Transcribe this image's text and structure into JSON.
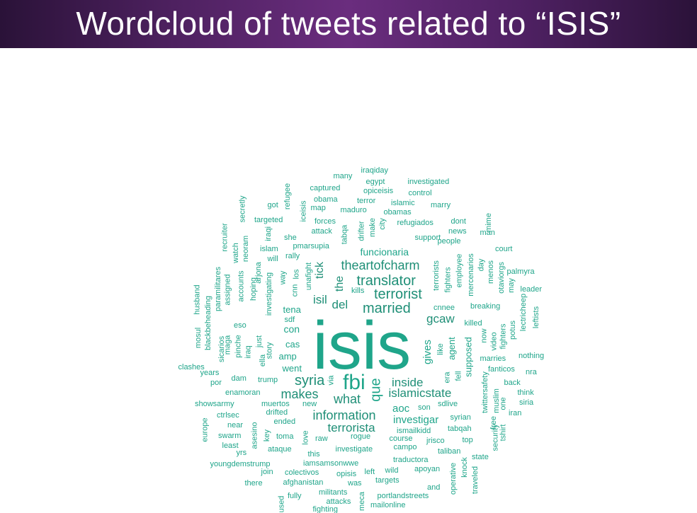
{
  "title": "Wordcloud of tweets related to “ISIS”",
  "colors": {
    "title_background": "#4e2160",
    "title_text": "#ffffff",
    "word_default": "#1fa58a",
    "word_large": "#1f8f77",
    "word_isis": "#555555",
    "word_fbi": "#7b62c4",
    "word_que": "#e5692d"
  },
  "words": [
    {
      "text": "isis",
      "color": "isis",
      "size": 5
    },
    {
      "text": "fbi",
      "color": "fbi",
      "size": 4
    },
    {
      "text": "que",
      "color": "que",
      "size": 3
    },
    {
      "text": "married",
      "size": 3
    },
    {
      "text": "translator",
      "size": 3
    },
    {
      "text": "terrorist",
      "size": 3
    },
    {
      "text": "theartofcharm",
      "size": 3
    },
    {
      "text": "syria",
      "size": 3
    },
    {
      "text": "makes",
      "size": 3
    },
    {
      "text": "what",
      "size": 3
    },
    {
      "text": "information",
      "size": 3
    },
    {
      "text": "terrorista",
      "size": 3
    },
    {
      "text": "islamicstate",
      "size": 3
    },
    {
      "text": "inside",
      "size": 3
    },
    {
      "text": "gcaw",
      "size": 3
    },
    {
      "text": "del",
      "size": 3
    },
    {
      "text": "isil",
      "size": 3
    },
    {
      "text": "the",
      "size": 3
    },
    {
      "text": "tick",
      "size": 3
    },
    {
      "text": "gives",
      "size": 2
    },
    {
      "text": "aoc",
      "size": 2
    },
    {
      "text": "investigar",
      "size": 2
    },
    {
      "text": "funcionaria",
      "size": 2
    },
    {
      "text": "con",
      "size": 2
    },
    {
      "text": "cas",
      "size": 2
    },
    {
      "text": "amp",
      "size": 2
    },
    {
      "text": "went",
      "size": 2
    },
    {
      "text": "tena",
      "size": 2
    },
    {
      "text": "supposed",
      "size": 2
    },
    {
      "text": "agent",
      "size": 2
    },
    {
      "text": "iraqiday",
      "size": 1
    },
    {
      "text": "many",
      "size": 1
    },
    {
      "text": "egypt",
      "size": 1
    },
    {
      "text": "investigated",
      "size": 1
    },
    {
      "text": "captured",
      "size": 1
    },
    {
      "text": "opiceisis",
      "size": 1
    },
    {
      "text": "control",
      "size": 1
    },
    {
      "text": "obama",
      "size": 1
    },
    {
      "text": "terror",
      "size": 1
    },
    {
      "text": "islamic",
      "size": 1
    },
    {
      "text": "marry",
      "size": 1
    },
    {
      "text": "got",
      "size": 1
    },
    {
      "text": "refugee",
      "size": 1
    },
    {
      "text": "map",
      "size": 1
    },
    {
      "text": "maduro",
      "size": 1
    },
    {
      "text": "obamas",
      "size": 1
    },
    {
      "text": "secretly",
      "size": 1
    },
    {
      "text": "targeted",
      "size": 1
    },
    {
      "text": "iceisis",
      "size": 1
    },
    {
      "text": "forces",
      "size": 1
    },
    {
      "text": "refugiados",
      "size": 1
    },
    {
      "text": "dont",
      "size": 1
    },
    {
      "text": "recruiter",
      "size": 1
    },
    {
      "text": "attack",
      "size": 1
    },
    {
      "text": "tabqa",
      "size": 1
    },
    {
      "text": "drifter",
      "size": 1
    },
    {
      "text": "make",
      "size": 1
    },
    {
      "text": "city",
      "size": 1
    },
    {
      "text": "news",
      "size": 1
    },
    {
      "text": "mime",
      "size": 1
    },
    {
      "text": "man",
      "size": 1
    },
    {
      "text": "she",
      "size": 1
    },
    {
      "text": "iraqi",
      "size": 1
    },
    {
      "text": "support",
      "size": 1
    },
    {
      "text": "people",
      "size": 1
    },
    {
      "text": "watch",
      "size": 1
    },
    {
      "text": "neoram",
      "size": 1
    },
    {
      "text": "islam",
      "size": 1
    },
    {
      "text": "pmarsupia",
      "size": 1
    },
    {
      "text": "court",
      "size": 1
    },
    {
      "text": "will",
      "size": 1
    },
    {
      "text": "rally",
      "size": 1
    },
    {
      "text": "employee",
      "size": 1
    },
    {
      "text": "mercenarios",
      "size": 1
    },
    {
      "text": "day",
      "size": 1
    },
    {
      "text": "menos",
      "size": 1
    },
    {
      "text": "palmyra",
      "size": 1
    },
    {
      "text": "arjona",
      "size": 1
    },
    {
      "text": "unafight",
      "size": 1
    },
    {
      "text": "los",
      "size": 1
    },
    {
      "text": "terrorists",
      "size": 1
    },
    {
      "text": "fighters",
      "size": 1
    },
    {
      "text": "otaviorgs",
      "size": 1
    },
    {
      "text": "may",
      "size": 1
    },
    {
      "text": "leader",
      "size": 1
    },
    {
      "text": "paramilitares",
      "size": 1
    },
    {
      "text": "assigned",
      "size": 1
    },
    {
      "text": "accounts",
      "size": 1
    },
    {
      "text": "hoping",
      "size": 1
    },
    {
      "text": "investigating",
      "size": 1
    },
    {
      "text": "way",
      "size": 1
    },
    {
      "text": "cnn",
      "size": 1
    },
    {
      "text": "kills",
      "size": 1
    },
    {
      "text": "cnnee",
      "size": 1
    },
    {
      "text": "breaking",
      "size": 1
    },
    {
      "text": "lectricheep",
      "size": 1
    },
    {
      "text": "leftists",
      "size": 1
    },
    {
      "text": "husband",
      "size": 1
    },
    {
      "text": "blackbeheading",
      "size": 1
    },
    {
      "text": "sdf",
      "size": 1
    },
    {
      "text": "killed",
      "size": 1
    },
    {
      "text": "fighters",
      "size": 1
    },
    {
      "text": "mosul",
      "size": 1
    },
    {
      "text": "eso",
      "size": 1
    },
    {
      "text": "video",
      "size": 1
    },
    {
      "text": "now",
      "size": 1
    },
    {
      "text": "potus",
      "size": 1
    },
    {
      "text": "maga",
      "size": 1
    },
    {
      "text": "sicarios",
      "size": 1
    },
    {
      "text": "pinche",
      "size": 1
    },
    {
      "text": "just",
      "size": 1
    },
    {
      "text": "story",
      "size": 1
    },
    {
      "text": "iraq",
      "size": 1
    },
    {
      "text": "ella",
      "size": 1
    },
    {
      "text": "like",
      "size": 1
    },
    {
      "text": "nothing",
      "size": 1
    },
    {
      "text": "clashes",
      "size": 1
    },
    {
      "text": "years",
      "size": 1
    },
    {
      "text": "era",
      "size": 1
    },
    {
      "text": "marries",
      "size": 1
    },
    {
      "text": "fanticos",
      "size": 1
    },
    {
      "text": "nra",
      "size": 1
    },
    {
      "text": "por",
      "size": 1
    },
    {
      "text": "dam",
      "size": 1
    },
    {
      "text": "trump",
      "size": 1
    },
    {
      "text": "via",
      "size": 1
    },
    {
      "text": "fell",
      "size": 1
    },
    {
      "text": "back",
      "size": 1
    },
    {
      "text": "enamoran",
      "size": 1
    },
    {
      "text": "twittersafety",
      "size": 1
    },
    {
      "text": "muslim",
      "size": 1
    },
    {
      "text": "think",
      "size": 1
    },
    {
      "text": "showsarmy",
      "size": 1
    },
    {
      "text": "muertos",
      "size": 1
    },
    {
      "text": "new",
      "size": 1
    },
    {
      "text": "sdlive",
      "size": 1
    },
    {
      "text": "son",
      "size": 1
    },
    {
      "text": "siria",
      "size": 1
    },
    {
      "text": "ctrlsec",
      "size": 1
    },
    {
      "text": "drifted",
      "size": 1
    },
    {
      "text": "syrian",
      "size": 1
    },
    {
      "text": "one",
      "size": 1
    },
    {
      "text": "iran",
      "size": 1
    },
    {
      "text": "europe",
      "size": 1
    },
    {
      "text": "near",
      "size": 1
    },
    {
      "text": "ended",
      "size": 1
    },
    {
      "text": "ismailkidd",
      "size": 1
    },
    {
      "text": "tabqah",
      "size": 1
    },
    {
      "text": "swarm",
      "size": 1
    },
    {
      "text": "asesino",
      "size": 1
    },
    {
      "text": "key",
      "size": 1
    },
    {
      "text": "toma",
      "size": 1
    },
    {
      "text": "raw",
      "size": 1
    },
    {
      "text": "rogue",
      "size": 1
    },
    {
      "text": "course",
      "size": 1
    },
    {
      "text": "jrisco",
      "size": 1
    },
    {
      "text": "top",
      "size": 1
    },
    {
      "text": "free",
      "size": 1
    },
    {
      "text": "tshirt",
      "size": 1
    },
    {
      "text": "least",
      "size": 1
    },
    {
      "text": "love",
      "size": 1
    },
    {
      "text": "campo",
      "size": 1
    },
    {
      "text": "security",
      "size": 1
    },
    {
      "text": "yrs",
      "size": 1
    },
    {
      "text": "ataque",
      "size": 1
    },
    {
      "text": "this",
      "size": 1
    },
    {
      "text": "investigate",
      "size": 1
    },
    {
      "text": "taliban",
      "size": 1
    },
    {
      "text": "state",
      "size": 1
    },
    {
      "text": "traductora",
      "size": 1
    },
    {
      "text": "youngdemstrump",
      "size": 1
    },
    {
      "text": "iamsamsonwwe",
      "size": 1
    },
    {
      "text": "apoyan",
      "size": 1
    },
    {
      "text": "knock",
      "size": 1
    },
    {
      "text": "traveled",
      "size": 1
    },
    {
      "text": "join",
      "size": 1
    },
    {
      "text": "colectivos",
      "size": 1
    },
    {
      "text": "opisis",
      "size": 1
    },
    {
      "text": "left",
      "size": 1
    },
    {
      "text": "wild",
      "size": 1
    },
    {
      "text": "operative",
      "size": 1
    },
    {
      "text": "there",
      "size": 1
    },
    {
      "text": "afghanistan",
      "size": 1
    },
    {
      "text": "was",
      "size": 1
    },
    {
      "text": "targets",
      "size": 1
    },
    {
      "text": "and",
      "size": 1
    },
    {
      "text": "fully",
      "size": 1
    },
    {
      "text": "militants",
      "size": 1
    },
    {
      "text": "portlandstreets",
      "size": 1
    },
    {
      "text": "attacks",
      "size": 1
    },
    {
      "text": "mailonline",
      "size": 1
    },
    {
      "text": "fighting",
      "size": 1
    },
    {
      "text": "used",
      "size": 1
    },
    {
      "text": "meca",
      "size": 1
    }
  ]
}
